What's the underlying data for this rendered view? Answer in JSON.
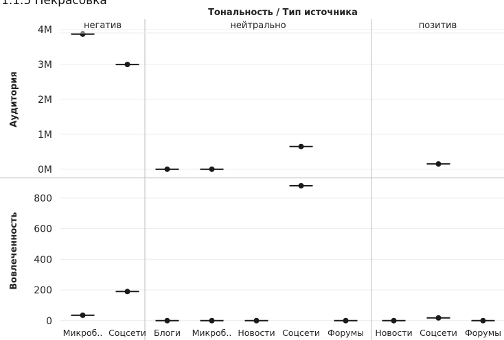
{
  "page": {
    "title": "1.1.5 Некрасовка"
  },
  "chart_data": {
    "type": "scatter",
    "title": "Тональность / Тип источника",
    "columns": [
      {
        "tonality": "негатив",
        "categories": [
          "Микроб..",
          "Соцсети"
        ]
      },
      {
        "tonality": "нейтрально",
        "categories": [
          "Блоги",
          "Микроб..",
          "Новости",
          "Соцсети",
          "Форумы"
        ]
      },
      {
        "tonality": "позитив",
        "categories": [
          "Новости",
          "Соцсети",
          "Форумы"
        ]
      }
    ],
    "rows": [
      {
        "ylabel": "Аудитория",
        "ylim": [
          -200000,
          4200000
        ],
        "ticks": [
          0,
          1000000,
          2000000,
          3000000,
          4000000
        ],
        "tick_labels": [
          "0M",
          "1M",
          "2M",
          "3M",
          "4M"
        ],
        "values": [
          [
            3870000,
            3000000
          ],
          [
            0,
            0,
            null,
            650000,
            null
          ],
          [
            null,
            150000,
            null
          ]
        ]
      },
      {
        "ylabel": "Вовлеченность",
        "ylim": [
          -10,
          920
        ],
        "ticks": [
          0,
          200,
          400,
          600,
          800
        ],
        "tick_labels": [
          "0",
          "200",
          "400",
          "600",
          "800"
        ],
        "values": [
          [
            35,
            190
          ],
          [
            0,
            0,
            0,
            880,
            0
          ],
          [
            0,
            18,
            0
          ]
        ]
      }
    ],
    "colors": {
      "mark": "#1a1a1a",
      "divider": "#c8c8c8",
      "grid": "#ececec"
    },
    "grid": true
  }
}
